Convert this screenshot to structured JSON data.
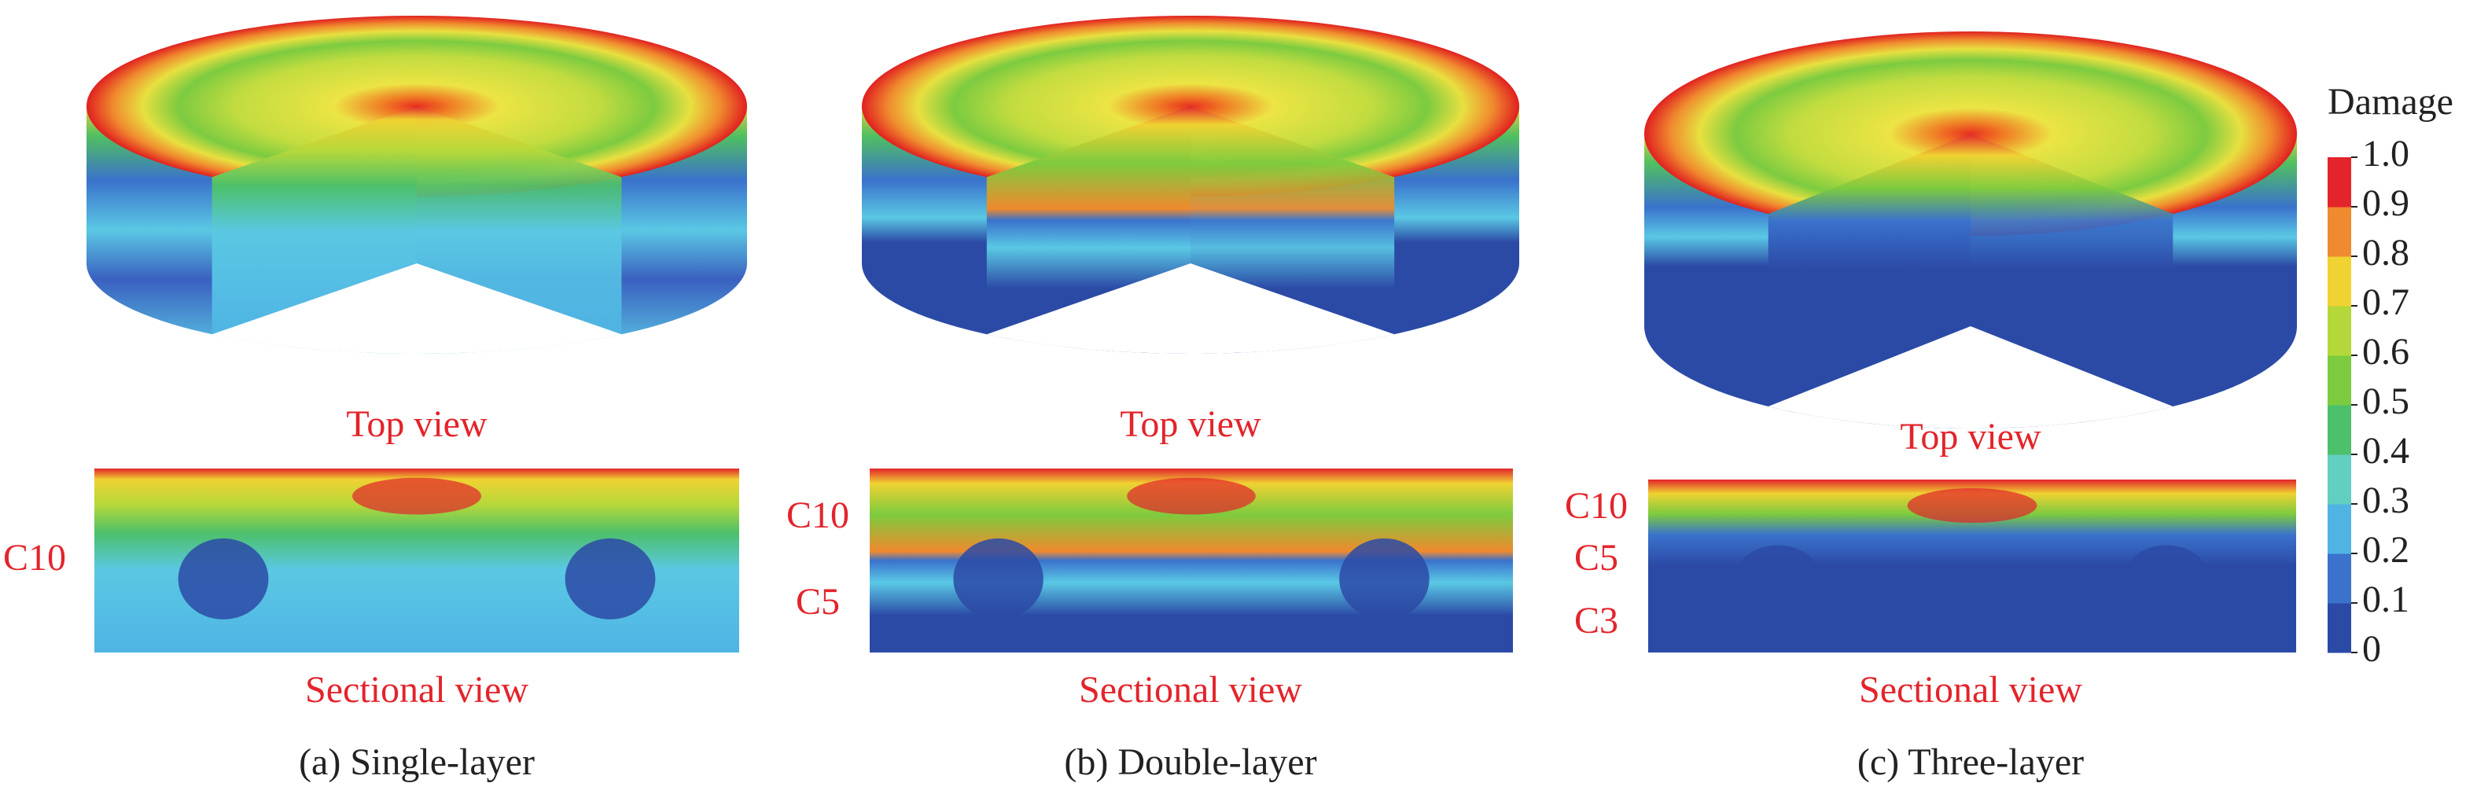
{
  "panels": [
    {
      "caption": "(a) Single-layer",
      "top_label": "Top view",
      "section_label": "Sectional view",
      "layers": [
        "C10"
      ]
    },
    {
      "caption": "(b) Double-layer",
      "top_label": "Top view",
      "section_label": "Sectional view",
      "layers": [
        "C10",
        "C5"
      ]
    },
    {
      "caption": "(c) Three-layer",
      "top_label": "Top view",
      "section_label": "Sectional view",
      "layers": [
        "C10",
        "C5",
        "C3"
      ]
    }
  ],
  "colorbar": {
    "title": "Damage",
    "ticks": [
      0,
      0.1,
      0.2,
      0.3,
      0.4,
      0.5,
      0.6,
      0.7,
      0.8,
      0.9,
      {
        "value": 1,
        "label": "1.0"
      }
    ],
    "colors": [
      "#2b4aa6",
      "#3a72cc",
      "#4fb4e4",
      "#62cfc0",
      "#4cc06a",
      "#7dcb3e",
      "#b4d83a",
      "#f0d232",
      "#f08a2e",
      "#e3242b"
    ]
  }
}
